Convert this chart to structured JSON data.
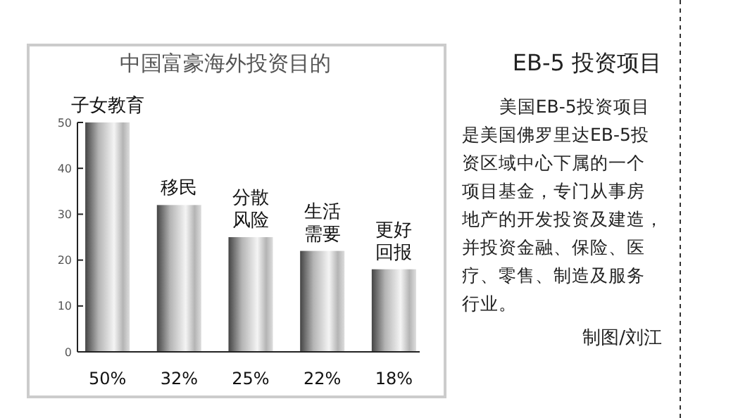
{
  "chart_data": {
    "type": "bar",
    "title": "中国富豪海外投资目的",
    "categories": [
      "子女教育",
      "移民",
      "分散风险",
      "生活需要",
      "更好回报"
    ],
    "values": [
      50,
      32,
      25,
      22,
      18
    ],
    "value_labels": [
      "50%",
      "32%",
      "25%",
      "22%",
      "18%"
    ],
    "color": "#b4b4b4",
    "ylim": [
      0,
      50
    ],
    "yticks": [
      0,
      10,
      20,
      30,
      40,
      50
    ],
    "grid": false,
    "annotations": [
      "EB-5 投资项目",
      "美国EB-5投资项目是美国佛罗里达EB-5投资区域中心下属的一个项目基金，专门从事房地产的开发投资及建造，并投资金融、保险、医疗、零售、制造及服务行业。",
      "制图/刘江"
    ]
  }
}
